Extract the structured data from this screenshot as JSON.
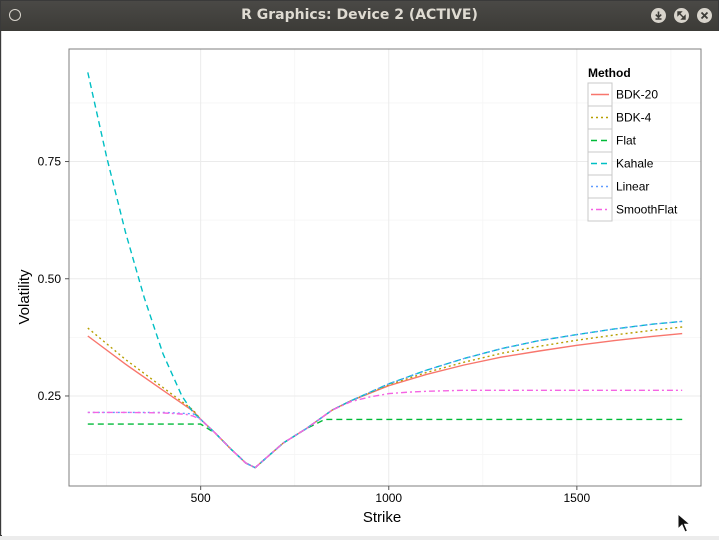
{
  "window": {
    "title": "R Graphics: Device 2 (ACTIVE)",
    "buttons": [
      "minimize-icon",
      "maximize-icon",
      "close-icon"
    ]
  },
  "chart_data": {
    "type": "line",
    "title": "",
    "xlabel": "Strike",
    "ylabel": "Volatility",
    "xlim": [
      150,
      1830
    ],
    "ylim": [
      0.058,
      0.99
    ],
    "x_ticks": [
      500,
      1000,
      1500
    ],
    "x_tick_labels": [
      "500",
      "1000",
      "1500"
    ],
    "y_ticks": [
      0.25,
      0.5,
      0.75
    ],
    "y_tick_labels": [
      "0.25",
      "0.50",
      "0.75"
    ],
    "grid": true,
    "legend": {
      "title": "Method",
      "placement": "top-right",
      "entries": [
        "BDK-20",
        "BDK-4",
        "Flat",
        "Kahale",
        "Linear",
        "SmoothFlat"
      ]
    },
    "series": [
      {
        "name": "BDK-20",
        "color": "#f8766d",
        "dash": "solid",
        "x": [
          200,
          300,
          400,
          480,
          500,
          540,
          580,
          620,
          645,
          670,
          720,
          780,
          850,
          900,
          1000,
          1100,
          1200,
          1300,
          1400,
          1500,
          1600,
          1700,
          1780
        ],
        "y": [
          0.378,
          0.318,
          0.262,
          0.218,
          0.2,
          0.17,
          0.137,
          0.107,
          0.097,
          0.115,
          0.15,
          0.18,
          0.22,
          0.24,
          0.272,
          0.296,
          0.316,
          0.333,
          0.346,
          0.358,
          0.368,
          0.377,
          0.383
        ]
      },
      {
        "name": "BDK-4",
        "color": "#b79f00",
        "dash": "dotted",
        "x": [
          200,
          300,
          400,
          480,
          500,
          540,
          580,
          620,
          645,
          670,
          720,
          780,
          850,
          900,
          1000,
          1100,
          1200,
          1300,
          1400,
          1500,
          1600,
          1700,
          1780
        ],
        "y": [
          0.395,
          0.328,
          0.268,
          0.22,
          0.2,
          0.17,
          0.137,
          0.107,
          0.097,
          0.115,
          0.15,
          0.18,
          0.22,
          0.24,
          0.274,
          0.3,
          0.322,
          0.341,
          0.356,
          0.369,
          0.38,
          0.39,
          0.397
        ]
      },
      {
        "name": "Flat",
        "color": "#00ba38",
        "dash": "dashed",
        "x": [
          200,
          300,
          400,
          480,
          500,
          540,
          580,
          620,
          645,
          670,
          720,
          780,
          830,
          900,
          1000,
          1200,
          1400,
          1600,
          1780
        ],
        "y": [
          0.19,
          0.19,
          0.19,
          0.19,
          0.19,
          0.17,
          0.137,
          0.107,
          0.097,
          0.115,
          0.15,
          0.18,
          0.2,
          0.2,
          0.2,
          0.2,
          0.2,
          0.2,
          0.2
        ]
      },
      {
        "name": "Kahale",
        "color": "#00bfc4",
        "dash": "dashed",
        "x": [
          200,
          250,
          300,
          350,
          400,
          450,
          480,
          500,
          540,
          580,
          620,
          645,
          670,
          720,
          780,
          850,
          900,
          1000,
          1100,
          1200,
          1300,
          1400,
          1500,
          1600,
          1700,
          1780
        ],
        "y": [
          0.94,
          0.76,
          0.6,
          0.46,
          0.34,
          0.25,
          0.215,
          0.2,
          0.17,
          0.137,
          0.107,
          0.097,
          0.115,
          0.15,
          0.18,
          0.22,
          0.24,
          0.276,
          0.305,
          0.33,
          0.351,
          0.368,
          0.381,
          0.393,
          0.403,
          0.409
        ]
      },
      {
        "name": "Linear",
        "color": "#619cff",
        "dash": "dotted",
        "x": [
          200,
          300,
          400,
          480,
          500,
          540,
          580,
          620,
          645,
          670,
          720,
          780,
          850,
          900,
          1000,
          1100,
          1200,
          1300,
          1400,
          1500,
          1600,
          1700,
          1780
        ],
        "y": [
          0.215,
          0.215,
          0.215,
          0.212,
          0.2,
          0.17,
          0.137,
          0.107,
          0.097,
          0.115,
          0.15,
          0.18,
          0.22,
          0.24,
          0.276,
          0.305,
          0.33,
          0.351,
          0.368,
          0.381,
          0.393,
          0.403,
          0.409
        ]
      },
      {
        "name": "SmoothFlat",
        "color": "#f564e3",
        "dash": "dotdash",
        "x": [
          200,
          300,
          400,
          460,
          480,
          500,
          540,
          580,
          620,
          645,
          670,
          720,
          780,
          850,
          900,
          950,
          1000,
          1050,
          1100,
          1150,
          1200,
          1300,
          1400,
          1600,
          1780
        ],
        "y": [
          0.215,
          0.215,
          0.214,
          0.211,
          0.207,
          0.2,
          0.17,
          0.137,
          0.107,
          0.097,
          0.115,
          0.15,
          0.18,
          0.22,
          0.238,
          0.248,
          0.255,
          0.258,
          0.26,
          0.261,
          0.262,
          0.262,
          0.262,
          0.262,
          0.262
        ]
      }
    ]
  }
}
